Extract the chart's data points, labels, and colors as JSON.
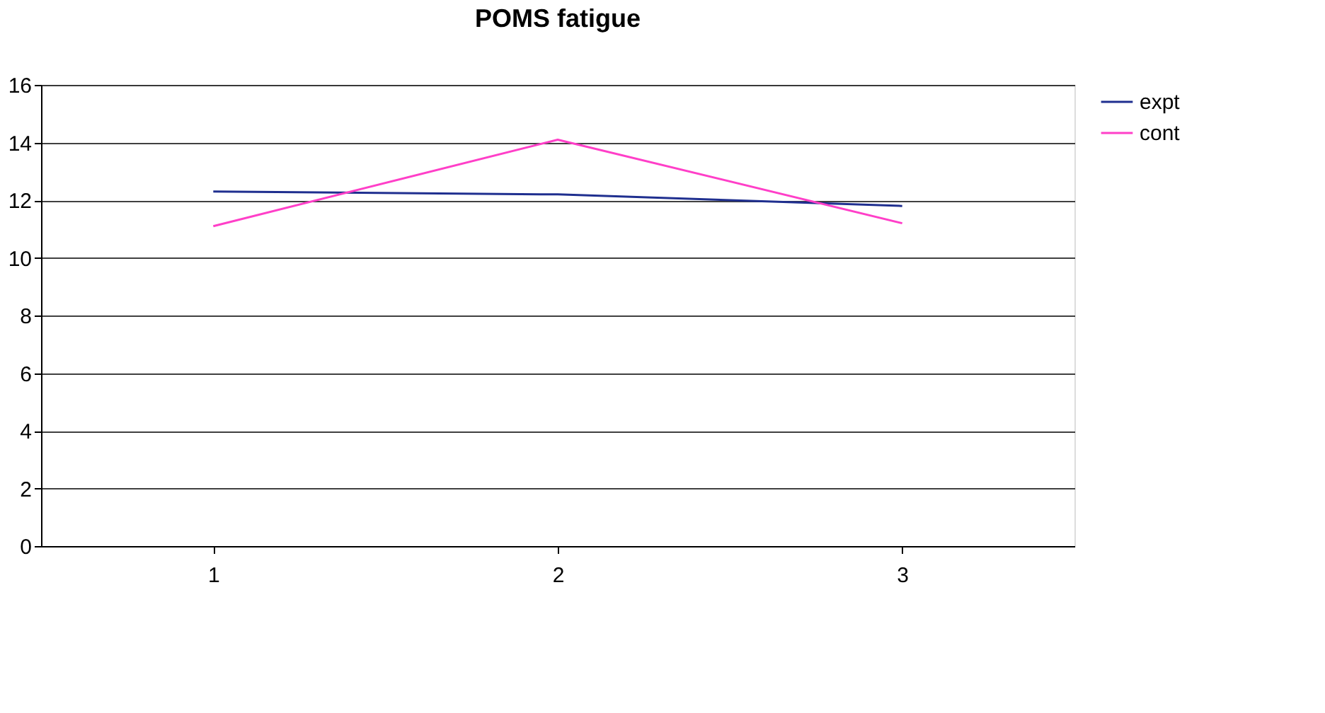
{
  "chart_data": {
    "type": "line",
    "title": "POMS fatigue",
    "categories": [
      "1",
      "2",
      "3"
    ],
    "series": [
      {
        "name": "expt",
        "color": "#1f2f8f",
        "values": [
          12.3,
          12.2,
          11.8
        ]
      },
      {
        "name": "cont",
        "color": "#ff3fc8",
        "values": [
          11.1,
          14.1,
          11.2
        ]
      }
    ],
    "ylim": [
      0,
      16
    ],
    "yticks": [
      0,
      2,
      4,
      6,
      8,
      10,
      12,
      14,
      16
    ],
    "grid": "y",
    "legend": "right",
    "marker": "none",
    "line_style": "solid"
  }
}
